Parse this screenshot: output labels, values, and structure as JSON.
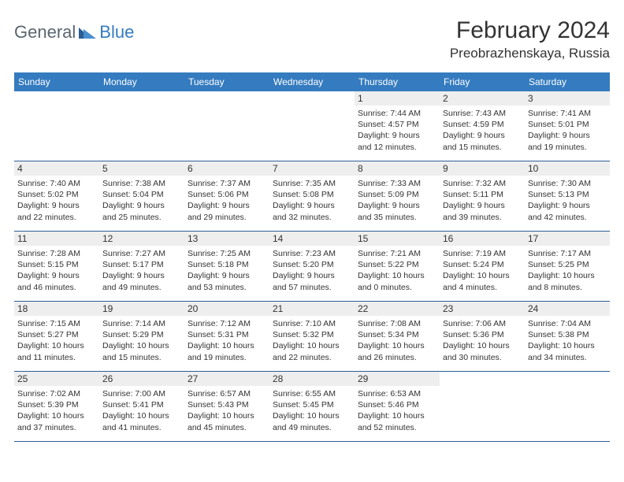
{
  "brand": {
    "part1": "General",
    "part2": "Blue",
    "accent": "#347bbf"
  },
  "title": "February 2024",
  "location": "Preobrazhenskaya, Russia",
  "colors": {
    "header_bg": "#347bbf",
    "header_text": "#ffffff",
    "daynum_bg": "#eeeeee",
    "rule": "#2d5f94",
    "text": "#333333",
    "page_bg": "#ffffff"
  },
  "day_headers": [
    "Sunday",
    "Monday",
    "Tuesday",
    "Wednesday",
    "Thursday",
    "Friday",
    "Saturday"
  ],
  "weeks": [
    [
      null,
      null,
      null,
      null,
      {
        "n": "1",
        "sunrise": "Sunrise: 7:44 AM",
        "sunset": "Sunset: 4:57 PM",
        "dl1": "Daylight: 9 hours",
        "dl2": "and 12 minutes."
      },
      {
        "n": "2",
        "sunrise": "Sunrise: 7:43 AM",
        "sunset": "Sunset: 4:59 PM",
        "dl1": "Daylight: 9 hours",
        "dl2": "and 15 minutes."
      },
      {
        "n": "3",
        "sunrise": "Sunrise: 7:41 AM",
        "sunset": "Sunset: 5:01 PM",
        "dl1": "Daylight: 9 hours",
        "dl2": "and 19 minutes."
      }
    ],
    [
      {
        "n": "4",
        "sunrise": "Sunrise: 7:40 AM",
        "sunset": "Sunset: 5:02 PM",
        "dl1": "Daylight: 9 hours",
        "dl2": "and 22 minutes."
      },
      {
        "n": "5",
        "sunrise": "Sunrise: 7:38 AM",
        "sunset": "Sunset: 5:04 PM",
        "dl1": "Daylight: 9 hours",
        "dl2": "and 25 minutes."
      },
      {
        "n": "6",
        "sunrise": "Sunrise: 7:37 AM",
        "sunset": "Sunset: 5:06 PM",
        "dl1": "Daylight: 9 hours",
        "dl2": "and 29 minutes."
      },
      {
        "n": "7",
        "sunrise": "Sunrise: 7:35 AM",
        "sunset": "Sunset: 5:08 PM",
        "dl1": "Daylight: 9 hours",
        "dl2": "and 32 minutes."
      },
      {
        "n": "8",
        "sunrise": "Sunrise: 7:33 AM",
        "sunset": "Sunset: 5:09 PM",
        "dl1": "Daylight: 9 hours",
        "dl2": "and 35 minutes."
      },
      {
        "n": "9",
        "sunrise": "Sunrise: 7:32 AM",
        "sunset": "Sunset: 5:11 PM",
        "dl1": "Daylight: 9 hours",
        "dl2": "and 39 minutes."
      },
      {
        "n": "10",
        "sunrise": "Sunrise: 7:30 AM",
        "sunset": "Sunset: 5:13 PM",
        "dl1": "Daylight: 9 hours",
        "dl2": "and 42 minutes."
      }
    ],
    [
      {
        "n": "11",
        "sunrise": "Sunrise: 7:28 AM",
        "sunset": "Sunset: 5:15 PM",
        "dl1": "Daylight: 9 hours",
        "dl2": "and 46 minutes."
      },
      {
        "n": "12",
        "sunrise": "Sunrise: 7:27 AM",
        "sunset": "Sunset: 5:17 PM",
        "dl1": "Daylight: 9 hours",
        "dl2": "and 49 minutes."
      },
      {
        "n": "13",
        "sunrise": "Sunrise: 7:25 AM",
        "sunset": "Sunset: 5:18 PM",
        "dl1": "Daylight: 9 hours",
        "dl2": "and 53 minutes."
      },
      {
        "n": "14",
        "sunrise": "Sunrise: 7:23 AM",
        "sunset": "Sunset: 5:20 PM",
        "dl1": "Daylight: 9 hours",
        "dl2": "and 57 minutes."
      },
      {
        "n": "15",
        "sunrise": "Sunrise: 7:21 AM",
        "sunset": "Sunset: 5:22 PM",
        "dl1": "Daylight: 10 hours",
        "dl2": "and 0 minutes."
      },
      {
        "n": "16",
        "sunrise": "Sunrise: 7:19 AM",
        "sunset": "Sunset: 5:24 PM",
        "dl1": "Daylight: 10 hours",
        "dl2": "and 4 minutes."
      },
      {
        "n": "17",
        "sunrise": "Sunrise: 7:17 AM",
        "sunset": "Sunset: 5:25 PM",
        "dl1": "Daylight: 10 hours",
        "dl2": "and 8 minutes."
      }
    ],
    [
      {
        "n": "18",
        "sunrise": "Sunrise: 7:15 AM",
        "sunset": "Sunset: 5:27 PM",
        "dl1": "Daylight: 10 hours",
        "dl2": "and 11 minutes."
      },
      {
        "n": "19",
        "sunrise": "Sunrise: 7:14 AM",
        "sunset": "Sunset: 5:29 PM",
        "dl1": "Daylight: 10 hours",
        "dl2": "and 15 minutes."
      },
      {
        "n": "20",
        "sunrise": "Sunrise: 7:12 AM",
        "sunset": "Sunset: 5:31 PM",
        "dl1": "Daylight: 10 hours",
        "dl2": "and 19 minutes."
      },
      {
        "n": "21",
        "sunrise": "Sunrise: 7:10 AM",
        "sunset": "Sunset: 5:32 PM",
        "dl1": "Daylight: 10 hours",
        "dl2": "and 22 minutes."
      },
      {
        "n": "22",
        "sunrise": "Sunrise: 7:08 AM",
        "sunset": "Sunset: 5:34 PM",
        "dl1": "Daylight: 10 hours",
        "dl2": "and 26 minutes."
      },
      {
        "n": "23",
        "sunrise": "Sunrise: 7:06 AM",
        "sunset": "Sunset: 5:36 PM",
        "dl1": "Daylight: 10 hours",
        "dl2": "and 30 minutes."
      },
      {
        "n": "24",
        "sunrise": "Sunrise: 7:04 AM",
        "sunset": "Sunset: 5:38 PM",
        "dl1": "Daylight: 10 hours",
        "dl2": "and 34 minutes."
      }
    ],
    [
      {
        "n": "25",
        "sunrise": "Sunrise: 7:02 AM",
        "sunset": "Sunset: 5:39 PM",
        "dl1": "Daylight: 10 hours",
        "dl2": "and 37 minutes."
      },
      {
        "n": "26",
        "sunrise": "Sunrise: 7:00 AM",
        "sunset": "Sunset: 5:41 PM",
        "dl1": "Daylight: 10 hours",
        "dl2": "and 41 minutes."
      },
      {
        "n": "27",
        "sunrise": "Sunrise: 6:57 AM",
        "sunset": "Sunset: 5:43 PM",
        "dl1": "Daylight: 10 hours",
        "dl2": "and 45 minutes."
      },
      {
        "n": "28",
        "sunrise": "Sunrise: 6:55 AM",
        "sunset": "Sunset: 5:45 PM",
        "dl1": "Daylight: 10 hours",
        "dl2": "and 49 minutes."
      },
      {
        "n": "29",
        "sunrise": "Sunrise: 6:53 AM",
        "sunset": "Sunset: 5:46 PM",
        "dl1": "Daylight: 10 hours",
        "dl2": "and 52 minutes."
      },
      null,
      null
    ]
  ]
}
